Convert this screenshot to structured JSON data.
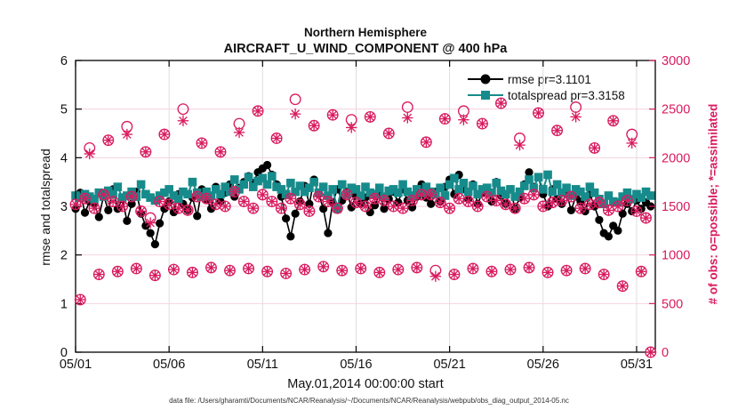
{
  "figure": {
    "title_line1": "Northern Hemisphere",
    "title_line2": "AIRCRAFT_U_WIND_COMPONENT @ 400 hPa",
    "xlabel": "May.01,2014 00:00:00 start",
    "ylabel_left": "rmse and totalspread",
    "ylabel_right": "# of obs: o=possible; *=assimilated",
    "caption": "data file: /Users/gharamti/Documents/NCAR/Reanalysis/~/Documents/NCAR/Reanalysis/webpub/obs_diag_output_2014-05.nc",
    "legend": [
      {
        "label": "rmse pr=3.1101",
        "marker": "circle",
        "color": "#000000"
      },
      {
        "label": "totalspread pr=3.3158",
        "marker": "square",
        "color": "#178B8B"
      }
    ],
    "colors": {
      "rmse": "#000000",
      "totalspread": "#178B8B",
      "obs": "#D91A5E",
      "grid_h": "#F6CEDC",
      "grid_v": "#DBDBDB",
      "axis": "#000000"
    }
  },
  "chart_data": {
    "type": "line",
    "title": "Northern Hemisphere — AIRCRAFT_U_WIND_COMPONENT @ 400 hPa",
    "x_start_day": 1.0,
    "x_step_days": 0.25,
    "xlim": [
      1,
      32
    ],
    "ylim_left": [
      0,
      6
    ],
    "ylim_right": [
      0,
      3000
    ],
    "x_ticks": {
      "values": [
        1,
        6,
        11,
        16,
        21,
        26,
        31
      ],
      "labels": [
        "05/01",
        "05/06",
        "05/11",
        "05/16",
        "05/21",
        "05/26",
        "05/31"
      ]
    },
    "y_ticks_left": [
      0,
      1,
      2,
      3,
      4,
      5,
      6
    ],
    "y_ticks_right": [
      0,
      500,
      1000,
      1500,
      2000,
      2500,
      3000
    ],
    "grid": {
      "horizontal_at_left_units": [
        1,
        2,
        3,
        4,
        5
      ],
      "vertical_at_days": [
        6,
        11,
        16,
        21,
        26,
        31
      ]
    },
    "series": [
      {
        "name": "rmse",
        "axis": "left",
        "mean_label": 3.1101,
        "values": [
          2.95,
          3.28,
          2.87,
          3.1,
          3.05,
          2.78,
          3.22,
          2.92,
          3.35,
          2.95,
          3.15,
          2.7,
          3.05,
          3.3,
          2.85,
          2.6,
          2.45,
          2.22,
          2.65,
          2.95,
          3.1,
          2.88,
          3.25,
          3.05,
          2.92,
          3.18,
          2.8,
          3.35,
          3.15,
          2.95,
          3.4,
          3.1,
          3.28,
          3.45,
          3.2,
          3.38,
          3.5,
          3.62,
          3.48,
          3.7,
          3.78,
          3.85,
          3.65,
          3.45,
          3.2,
          2.75,
          2.38,
          2.85,
          3.1,
          3.42,
          3.05,
          3.55,
          3.25,
          2.95,
          2.45,
          3.08,
          3.35,
          3.12,
          3.3,
          2.98,
          3.22,
          3.05,
          3.18,
          2.88,
          3.02,
          3.25,
          2.95,
          3.15,
          3.3,
          3.08,
          3.35,
          3.12,
          2.98,
          3.2,
          3.45,
          3.18,
          3.05,
          3.3,
          3.1,
          3.4,
          3.55,
          3.25,
          3.65,
          3.35,
          3.15,
          3.45,
          3.05,
          3.28,
          3.38,
          3.1,
          3.5,
          3.22,
          3.05,
          3.35,
          2.95,
          3.18,
          3.45,
          3.7,
          3.4,
          3.6,
          3.25,
          3.0,
          3.35,
          3.15,
          3.05,
          3.28,
          2.92,
          3.2,
          3.1,
          2.9,
          3.25,
          3.0,
          2.72,
          2.45,
          2.38,
          2.6,
          2.5,
          2.85,
          3.05,
          2.9,
          3.12,
          2.95,
          3.08,
          3.0
        ]
      },
      {
        "name": "totalspread",
        "axis": "left",
        "mean_label": 3.3158,
        "values": [
          3.22,
          3.18,
          3.25,
          3.2,
          3.15,
          3.28,
          3.2,
          3.32,
          3.25,
          3.4,
          3.18,
          3.22,
          3.3,
          3.2,
          3.45,
          3.25,
          3.18,
          3.12,
          3.22,
          3.28,
          3.35,
          3.22,
          3.15,
          3.3,
          3.25,
          3.5,
          3.28,
          3.2,
          3.3,
          3.22,
          3.35,
          3.25,
          3.4,
          3.3,
          3.55,
          3.35,
          3.45,
          3.6,
          3.4,
          3.52,
          3.58,
          3.45,
          3.62,
          3.4,
          3.35,
          3.25,
          3.48,
          3.3,
          3.42,
          3.3,
          3.38,
          3.5,
          3.28,
          3.4,
          3.22,
          3.35,
          2.95,
          3.45,
          3.25,
          3.38,
          3.35,
          3.22,
          3.4,
          3.28,
          3.25,
          3.38,
          3.2,
          3.32,
          3.35,
          3.28,
          3.45,
          3.3,
          3.22,
          3.35,
          3.28,
          3.4,
          3.3,
          3.25,
          3.38,
          3.22,
          3.45,
          3.58,
          3.35,
          3.48,
          3.3,
          3.42,
          3.25,
          3.35,
          3.38,
          3.28,
          3.48,
          3.32,
          3.25,
          3.35,
          3.2,
          3.3,
          3.42,
          3.55,
          3.38,
          3.6,
          3.35,
          3.65,
          3.3,
          3.45,
          3.28,
          3.38,
          3.22,
          3.35,
          3.3,
          3.2,
          3.4,
          3.28,
          3.15,
          3.05,
          3.22,
          3.1,
          3.08,
          3.2,
          3.28,
          3.15,
          3.25,
          3.18,
          3.3,
          3.22
        ]
      },
      {
        "name": "obs_possible",
        "axis": "right",
        "values": [
          1520,
          540,
          1580,
          2100,
          1480,
          800,
          1620,
          2180,
          1550,
          830,
          1500,
          2320,
          1600,
          860,
          1450,
          2060,
          1380,
          790,
          1550,
          2240,
          1520,
          850,
          1480,
          2500,
          1460,
          820,
          1600,
          2150,
          1580,
          870,
          1520,
          2060,
          1500,
          840,
          1650,
          2350,
          1550,
          860,
          1480,
          2480,
          1620,
          830,
          1550,
          2200,
          1480,
          810,
          1580,
          2600,
          1520,
          850,
          1450,
          2330,
          1600,
          880,
          1550,
          2440,
          1480,
          840,
          1620,
          2390,
          1540,
          860,
          1500,
          2420,
          1580,
          820,
          1560,
          2250,
          1500,
          850,
          1480,
          2520,
          1560,
          870,
          1620,
          2160,
          1620,
          840,
          1540,
          2400,
          1480,
          800,
          1580,
          2480,
          1550,
          860,
          1500,
          2350,
          1600,
          830,
          1560,
          2560,
          1520,
          850,
          1480,
          2200,
          1580,
          870,
          1620,
          2460,
          1500,
          820,
          1540,
          2280,
          1560,
          840,
          1600,
          2520,
          1480,
          860,
          1520,
          2100,
          1540,
          800,
          1460,
          2380,
          1500,
          680,
          1560,
          2240,
          1450,
          830,
          1380,
          0
        ]
      },
      {
        "name": "obs_assimilated",
        "axis": "right",
        "derived": "obs_possible minus assimilated_deficit",
        "assimilated_deficit": {
          "3": 60,
          "11": 80,
          "16": 50,
          "23": 120,
          "35": 90,
          "47": 150,
          "59": 80,
          "71": 110,
          "77": 60,
          "83": 90,
          "95": 70,
          "107": 100,
          "119": 90
        }
      }
    ]
  }
}
